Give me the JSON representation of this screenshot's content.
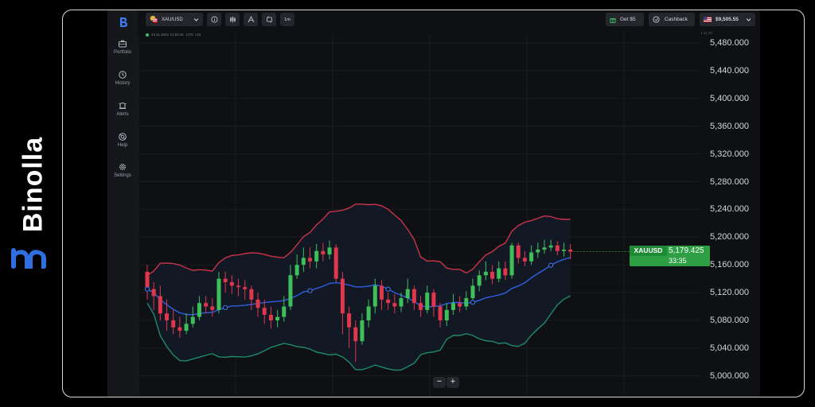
{
  "brand": {
    "name": "Binolla"
  },
  "sidebar": {
    "items": [
      {
        "label": "Portfolio",
        "icon": "briefcase-icon"
      },
      {
        "label": "History",
        "icon": "history-icon"
      },
      {
        "label": "Alerts",
        "icon": "alerts-icon"
      },
      {
        "label": "Help",
        "icon": "help-icon"
      },
      {
        "label": "Settings",
        "icon": "gear-icon"
      }
    ]
  },
  "toolbar": {
    "asset": "XAU/USD",
    "timeframe": "1m",
    "bonus_label": "Get $5",
    "cashback_label": "Cashback",
    "balance": "$9,505.55"
  },
  "chart_header": {
    "timestamp": "23.11.2021 21:04:31",
    "timezone": "UTC +10",
    "corner_time": "1:11:30"
  },
  "chart_data": {
    "type": "candlestick",
    "symbol": "XAUUSD",
    "current_price": "5,179.425",
    "countdown": "33:35",
    "y_ticks": [
      "5,480.000",
      "5,440.000",
      "5,400.000",
      "5,360.000",
      "5,320.000",
      "5,280.000",
      "5,240.000",
      "5,200.000",
      "5,160.000",
      "5,120.000",
      "5,080.000",
      "5,040.000",
      "5,000.000"
    ],
    "ylim": [
      4990,
      5490
    ],
    "indicators": [
      "Bollinger Bands (upper, middle, lower)"
    ],
    "candles": [
      [
        5150,
        5125,
        5160,
        5110
      ],
      [
        5125,
        5115,
        5135,
        5095
      ],
      [
        5115,
        5090,
        5130,
        5080
      ],
      [
        5090,
        5080,
        5110,
        5065
      ],
      [
        5080,
        5070,
        5095,
        5060
      ],
      [
        5070,
        5065,
        5085,
        5055
      ],
      [
        5065,
        5075,
        5090,
        5060
      ],
      [
        5075,
        5085,
        5100,
        5070
      ],
      [
        5085,
        5105,
        5115,
        5080
      ],
      [
        5105,
        5100,
        5115,
        5090
      ],
      [
        5100,
        5095,
        5112,
        5085
      ],
      [
        5095,
        5140,
        5150,
        5090
      ],
      [
        5140,
        5135,
        5150,
        5120
      ],
      [
        5135,
        5130,
        5145,
        5118
      ],
      [
        5130,
        5128,
        5140,
        5115
      ],
      [
        5128,
        5125,
        5138,
        5110
      ],
      [
        5125,
        5110,
        5130,
        5095
      ],
      [
        5110,
        5098,
        5120,
        5085
      ],
      [
        5098,
        5088,
        5110,
        5075
      ],
      [
        5088,
        5080,
        5100,
        5068
      ],
      [
        5080,
        5085,
        5095,
        5070
      ],
      [
        5085,
        5100,
        5115,
        5078
      ],
      [
        5100,
        5145,
        5160,
        5095
      ],
      [
        5145,
        5160,
        5175,
        5140
      ],
      [
        5160,
        5170,
        5185,
        5150
      ],
      [
        5170,
        5165,
        5185,
        5155
      ],
      [
        5165,
        5180,
        5190,
        5155
      ],
      [
        5180,
        5175,
        5192,
        5165
      ],
      [
        5175,
        5185,
        5195,
        5168
      ],
      [
        5185,
        5140,
        5190,
        5135
      ],
      [
        5140,
        5090,
        5150,
        5060
      ],
      [
        5090,
        5070,
        5100,
        5040
      ],
      [
        5070,
        5050,
        5080,
        5020
      ],
      [
        5050,
        5080,
        5090,
        5045
      ],
      [
        5080,
        5100,
        5110,
        5070
      ],
      [
        5100,
        5130,
        5140,
        5090
      ],
      [
        5130,
        5110,
        5138,
        5095
      ],
      [
        5110,
        5105,
        5120,
        5095
      ],
      [
        5105,
        5100,
        5118,
        5090
      ],
      [
        5100,
        5112,
        5120,
        5092
      ],
      [
        5112,
        5125,
        5140,
        5105
      ],
      [
        5125,
        5105,
        5130,
        5095
      ],
      [
        5105,
        5095,
        5115,
        5085
      ],
      [
        5095,
        5120,
        5130,
        5090
      ],
      [
        5120,
        5100,
        5125,
        5085
      ],
      [
        5100,
        5080,
        5105,
        5070
      ],
      [
        5080,
        5095,
        5105,
        5072
      ],
      [
        5095,
        5105,
        5118,
        5088
      ],
      [
        5105,
        5100,
        5115,
        5092
      ],
      [
        5100,
        5112,
        5122,
        5095
      ],
      [
        5112,
        5130,
        5140,
        5105
      ],
      [
        5130,
        5145,
        5152,
        5122
      ],
      [
        5145,
        5150,
        5165,
        5138
      ],
      [
        5150,
        5140,
        5160,
        5132
      ],
      [
        5140,
        5155,
        5165,
        5135
      ],
      [
        5155,
        5145,
        5165,
        5138
      ],
      [
        5145,
        5188,
        5192,
        5140
      ],
      [
        5188,
        5170,
        5192,
        5162
      ],
      [
        5170,
        5165,
        5180,
        5158
      ],
      [
        5165,
        5178,
        5188,
        5160
      ],
      [
        5178,
        5182,
        5192,
        5170
      ],
      [
        5182,
        5185,
        5196,
        5176
      ],
      [
        5185,
        5188,
        5196,
        5180
      ],
      [
        5188,
        5180,
        5194,
        5174
      ],
      [
        5180,
        5182,
        5192,
        5172
      ],
      [
        5182,
        5179,
        5190,
        5168
      ]
    ]
  },
  "zoom": {
    "minus": "−",
    "plus": "+"
  }
}
